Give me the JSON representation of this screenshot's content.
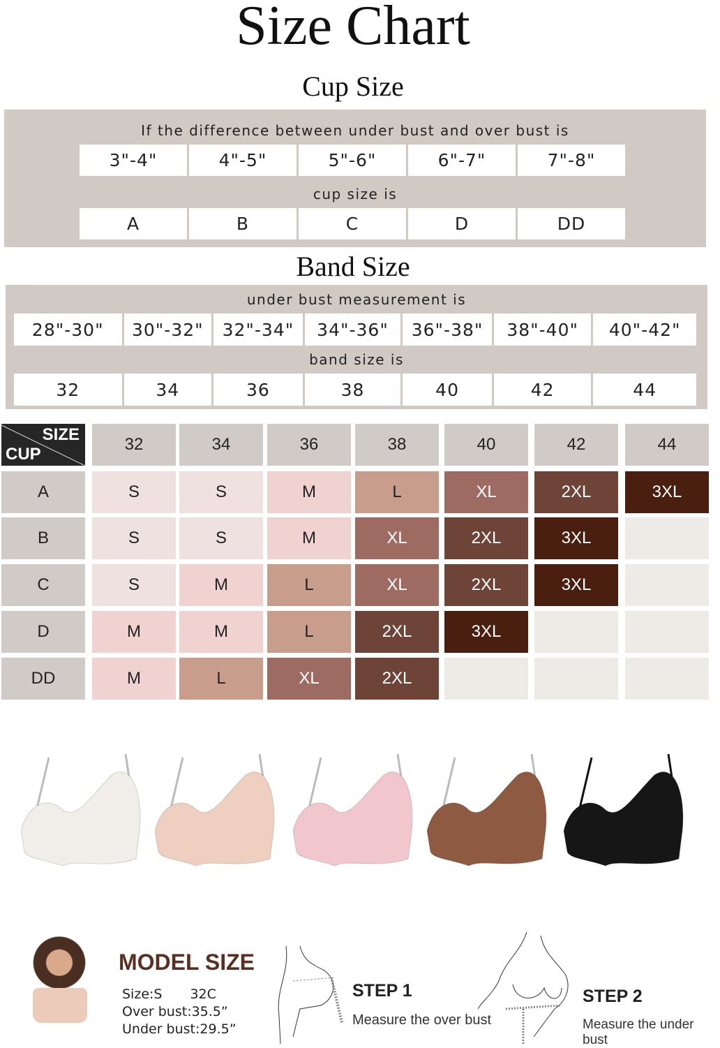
{
  "title": "Size Chart",
  "cup": {
    "heading": "Cup Size",
    "label1": "If the difference between under bust and over bust is",
    "diffs": [
      "3\"-4\"",
      "4\"-5\"",
      "5\"-6\"",
      "6\"-7\"",
      "7\"-8\""
    ],
    "label2": "cup size is",
    "cups": [
      "A",
      "B",
      "C",
      "D",
      "DD"
    ]
  },
  "band": {
    "heading": "Band Size",
    "label1": "under bust measurement is",
    "ranges": [
      "28\"-30\"",
      "30\"-32\"",
      "32\"-34\"",
      "34\"-36\"",
      "36\"-38\"",
      "38\"-40\"",
      "40\"-42\""
    ],
    "label2": "band size is",
    "bands": [
      "32",
      "34",
      "36",
      "38",
      "40",
      "42",
      "44"
    ]
  },
  "grid": {
    "corner_size": "SIZE",
    "corner_cup": "CUP",
    "columns": [
      "32",
      "34",
      "36",
      "38",
      "40",
      "42",
      "44"
    ],
    "rows": [
      {
        "cup": "A",
        "sizes": [
          "S",
          "S",
          "M",
          "L",
          "XL",
          "2XL",
          "3XL"
        ]
      },
      {
        "cup": "B",
        "sizes": [
          "S",
          "S",
          "M",
          "XL",
          "2XL",
          "3XL",
          ""
        ]
      },
      {
        "cup": "C",
        "sizes": [
          "S",
          "M",
          "L",
          "XL",
          "2XL",
          "3XL",
          ""
        ]
      },
      {
        "cup": "D",
        "sizes": [
          "M",
          "M",
          "L",
          "2XL",
          "3XL",
          "",
          ""
        ]
      },
      {
        "cup": "DD",
        "sizes": [
          "M",
          "L",
          "XL",
          "2XL",
          "",
          "",
          ""
        ]
      }
    ],
    "colors": {
      "S": "#efe1e0",
      "M": "#f0d3d1",
      "L": "#c99d8c",
      "XL": "#9e6b62",
      "2XL": "#6e4439",
      "3XL": "#4a1f10",
      "": "#eeebe7"
    }
  },
  "products": {
    "colors": [
      "#f1ede8",
      "#efcfbf",
      "#f1c6cc",
      "#8e5a42",
      "#161616"
    ]
  },
  "model": {
    "heading": "MODEL SIZE",
    "size": "Size:S",
    "cup_size": "32C",
    "over": "Over bust:35.5”",
    "under": "Under bust:29.5”"
  },
  "steps": [
    {
      "title": "STEP 1",
      "text": "Measure the over bust"
    },
    {
      "title": "STEP 2",
      "text": "Measure the under bust"
    }
  ]
}
